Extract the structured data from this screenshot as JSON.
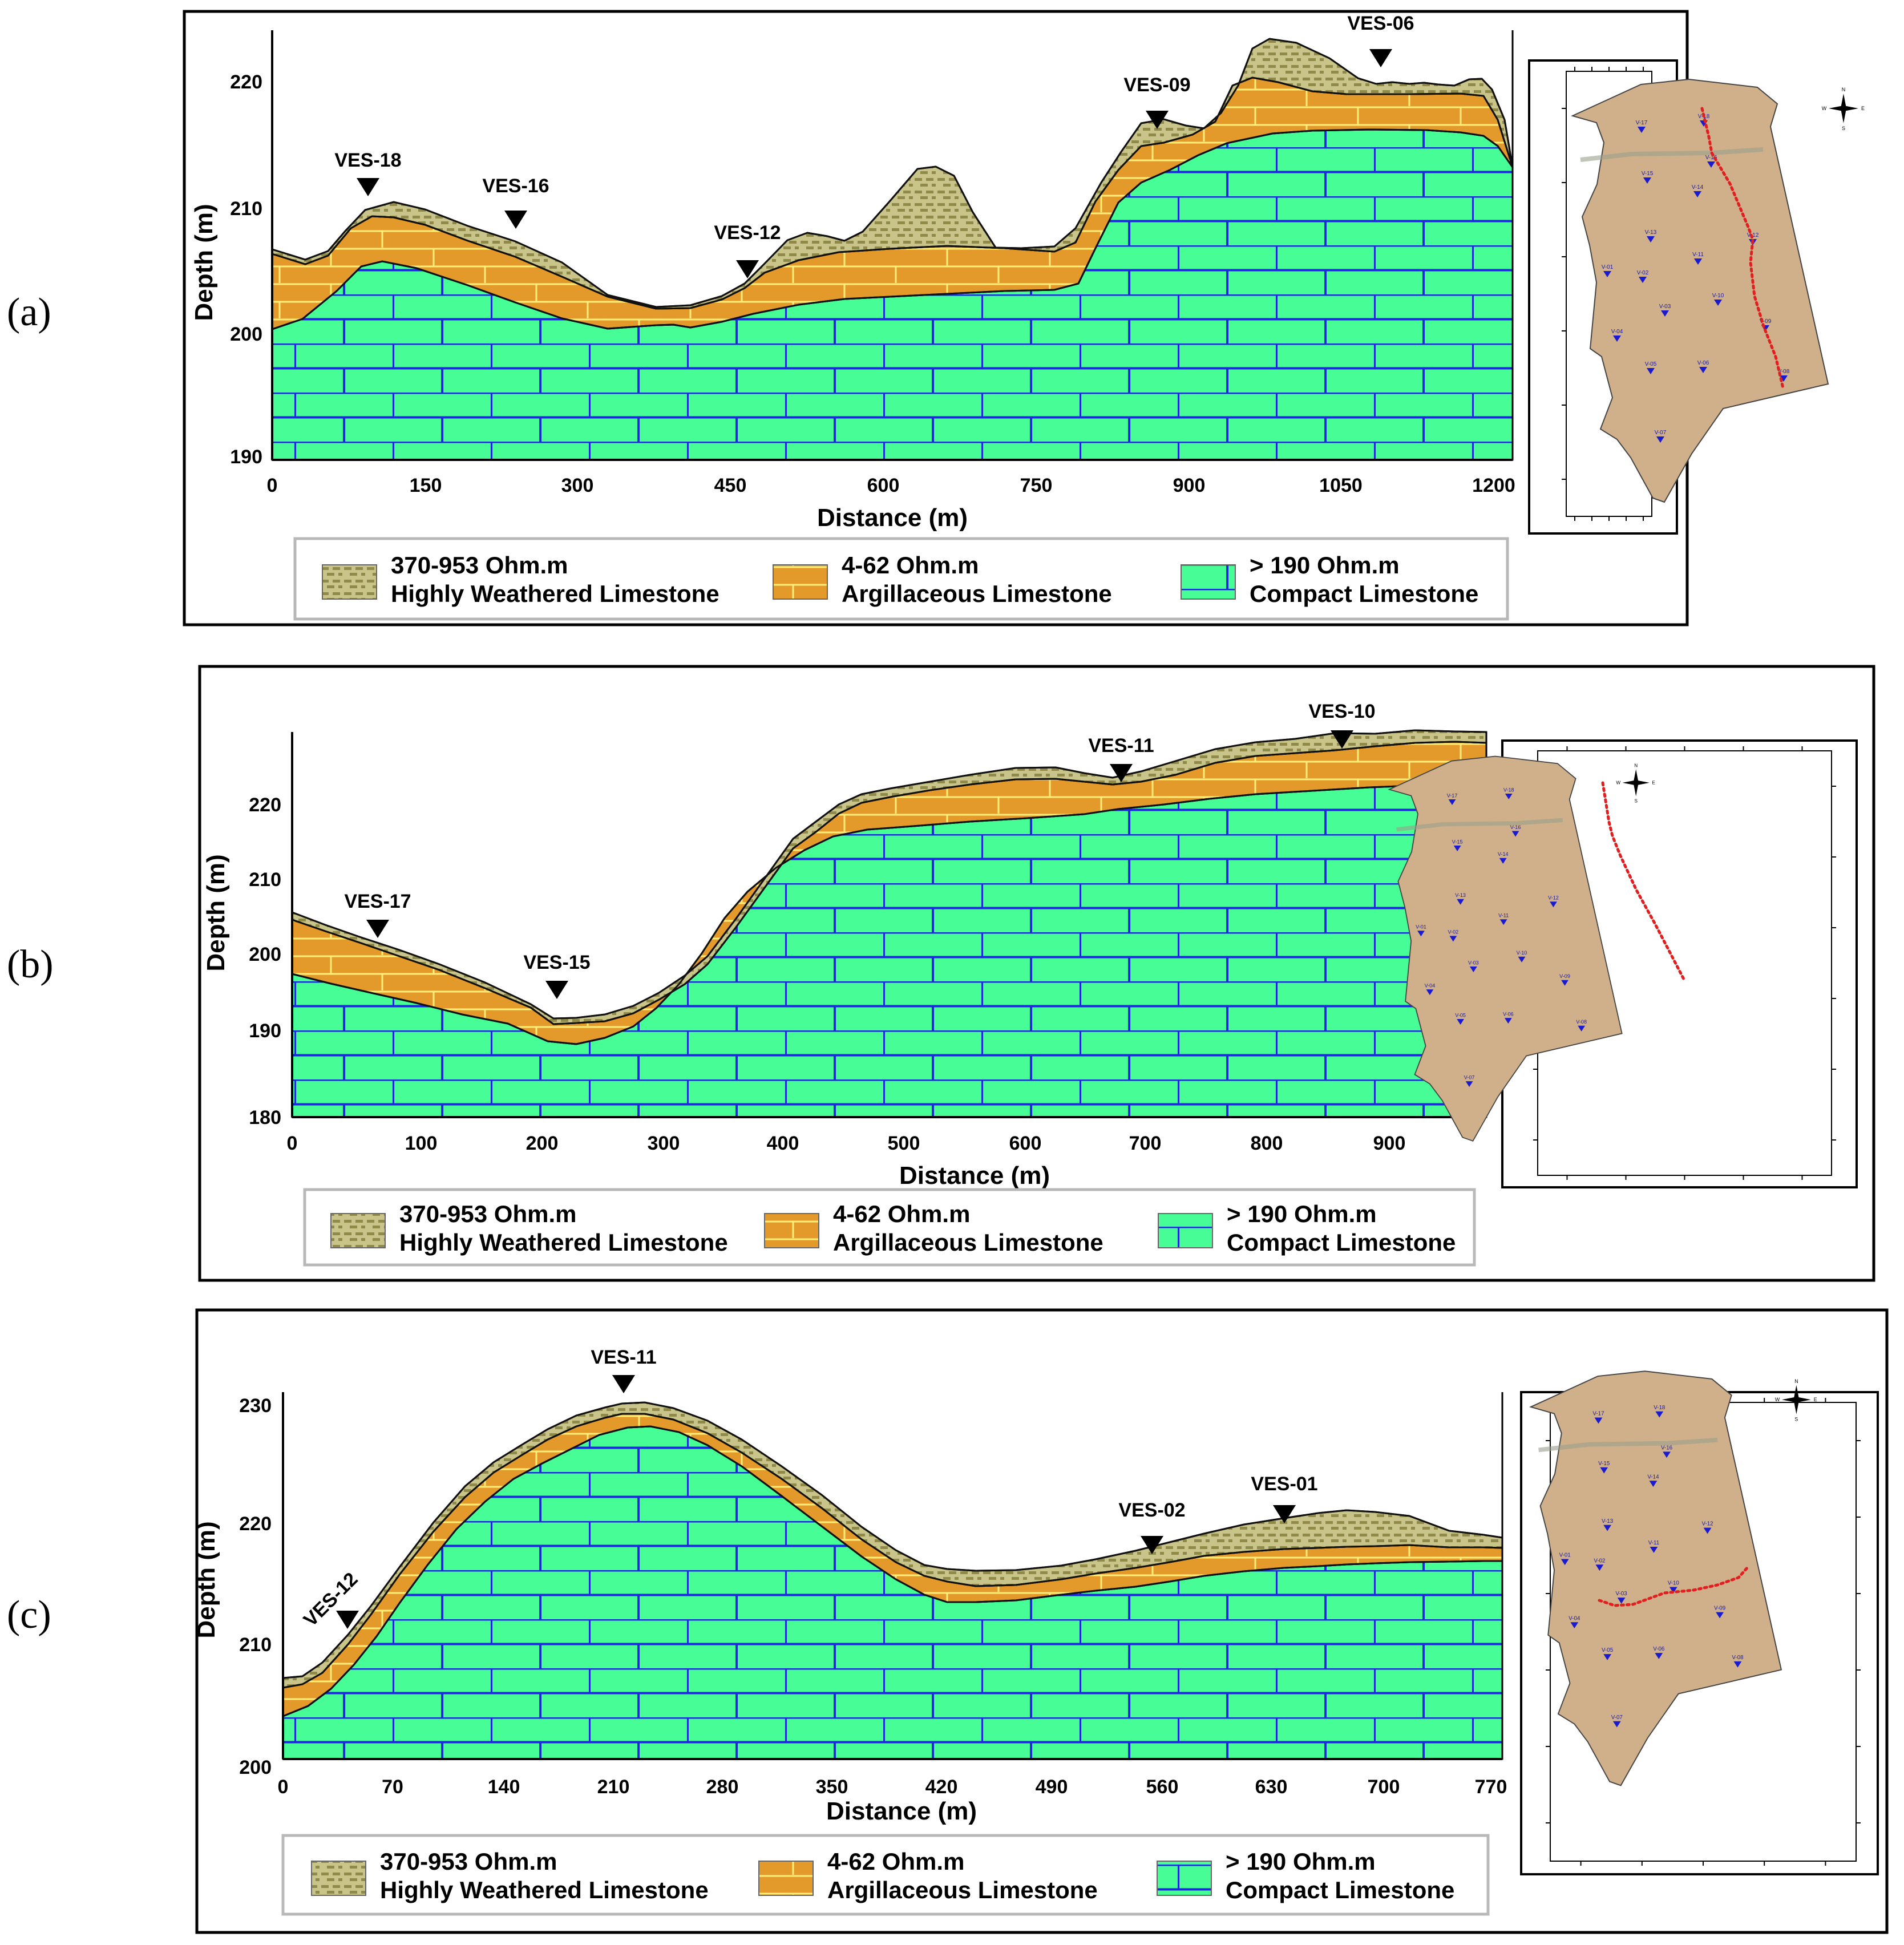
{
  "colors": {
    "weathered": "#c9c48a",
    "weathered_dot": "#8f8a4a",
    "argillaceous": "#e49a2a",
    "argillaceous_line": "#ffef7a",
    "compact": "#47fd95",
    "compact_line": "#1a2ad8",
    "route": "#e02020",
    "map_bg": "#cfb08a"
  },
  "legend": [
    {
      "range": "370-953 Ohm.m",
      "name": "Highly Weathered Limestone"
    },
    {
      "range": "4-62 Ohm.m",
      "name": "Argillaceous Limestone"
    },
    {
      "range": "> 190 Ohm.m",
      "name": "Compact Limestone"
    }
  ],
  "map_stations": [
    "V-17",
    "V-18",
    "V-15",
    "V-16",
    "V-14",
    "V-13",
    "V-12",
    "V-11",
    "V-01",
    "V-02",
    "V-03",
    "V-10",
    "V-04",
    "V-09",
    "V-05",
    "V-06",
    "V-08",
    "V-07"
  ],
  "compass": {
    "n": "N",
    "s": "S",
    "e": "E",
    "w": "W"
  },
  "panels": [
    {
      "label": "(a)",
      "xlabel": "Distance (m)",
      "ylabel": "Depth (m)",
      "x_ticks": [
        "0",
        "150",
        "300",
        "450",
        "600",
        "750",
        "900",
        "1050",
        "1200"
      ],
      "y_ticks": [
        "220",
        "210",
        "200",
        "190"
      ],
      "stations": [
        "VES-18",
        "VES-16",
        "VES-12",
        "VES-09",
        "VES-06"
      ],
      "route": "V-18 → V-16 → V-12 → V-09 → V-06"
    },
    {
      "label": "(b)",
      "xlabel": "Distance (m)",
      "ylabel": "Depth (m)",
      "x_ticks": [
        "0",
        "100",
        "200",
        "300",
        "400",
        "500",
        "600",
        "700",
        "800",
        "900"
      ],
      "y_ticks": [
        "220",
        "210",
        "200",
        "190",
        "180"
      ],
      "stations": [
        "VES-17",
        "VES-15",
        "VES-11",
        "VES-10"
      ],
      "route": "V-17 → V-15 → V-11 → V-10"
    },
    {
      "label": "(c)",
      "xlabel": "Distance (m)",
      "ylabel": "Depth (m)",
      "x_ticks": [
        "0",
        "70",
        "140",
        "210",
        "280",
        "350",
        "420",
        "490",
        "560",
        "630",
        "700",
        "770"
      ],
      "y_ticks": [
        "230",
        "220",
        "210",
        "200"
      ],
      "stations": [
        "VES-12",
        "VES-11",
        "VES-02",
        "VES-01"
      ],
      "route": "V-01 → V-02 → V-11 → V-12"
    }
  ]
}
